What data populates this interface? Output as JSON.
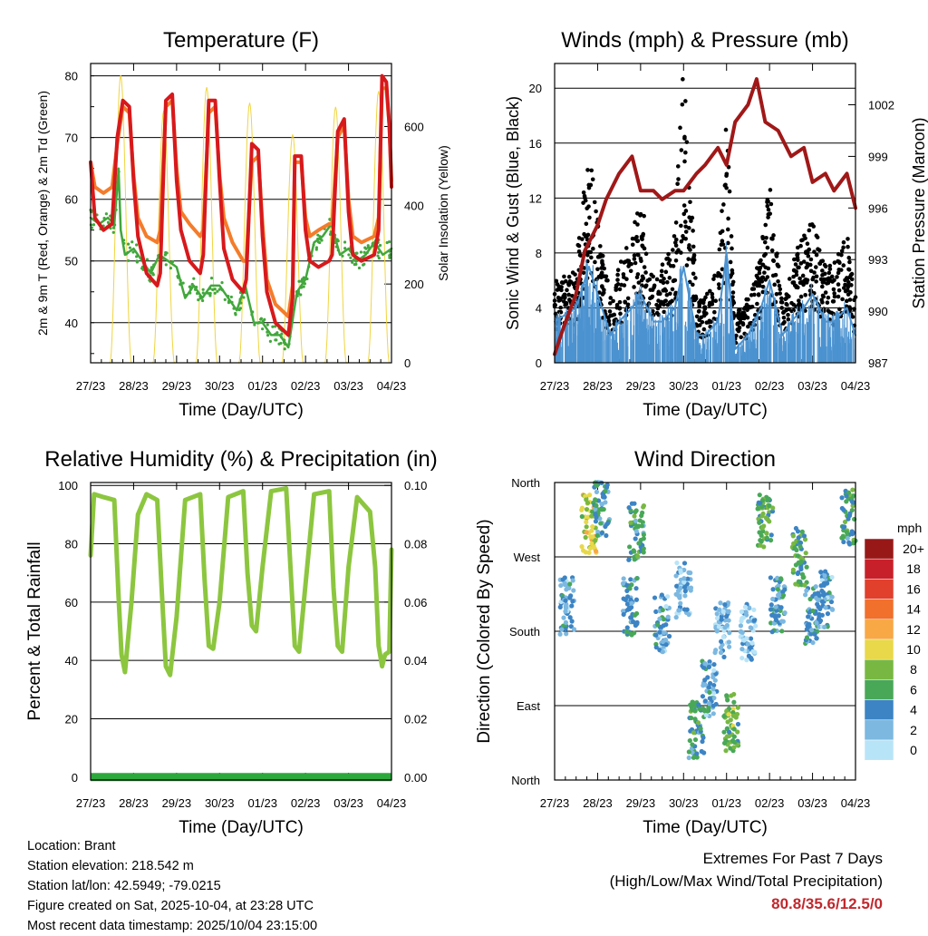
{
  "colors": {
    "temp2m": "#d7191c",
    "temp9m": "#f47c2a",
    "dewpoint": "#41a73c",
    "solar": "#f0d540",
    "gust": "#000000",
    "wind": "#4b92d0",
    "pressure": "#a01818",
    "rh": "#8cc63f",
    "precip": "#2ca83c",
    "extremes": "#c0282d"
  },
  "time_ticks": [
    "27/23",
    "28/23",
    "29/23",
    "30/23",
    "01/23",
    "02/23",
    "03/23",
    "04/23"
  ],
  "chart_data": [
    {
      "id": "temperature",
      "type": "line",
      "title": "Temperature (F)",
      "xlabel": "Time (Day/UTC)",
      "ylabel": "2m & 9m T (Red, Orange) & 2m Td (Green)",
      "y2label": "Solar Insolation (Yellow)",
      "ylim": [
        33.5,
        82
      ],
      "yticks": [
        40,
        50,
        60,
        70,
        80
      ],
      "y2lim": [
        0,
        760
      ],
      "y2ticks": [
        0,
        200,
        400,
        600
      ],
      "xlim_days": [
        0,
        7
      ],
      "series": [
        {
          "name": "2m T",
          "color": "temp2m",
          "x": [
            0,
            0.1,
            0.3,
            0.5,
            0.62,
            0.75,
            0.9,
            1.0,
            1.1,
            1.3,
            1.55,
            1.62,
            1.75,
            1.9,
            2.0,
            2.1,
            2.3,
            2.55,
            2.62,
            2.75,
            2.9,
            3.0,
            3.1,
            3.3,
            3.55,
            3.62,
            3.75,
            3.9,
            4.0,
            4.1,
            4.3,
            4.6,
            4.7,
            4.75,
            4.9,
            5.0,
            5.1,
            5.3,
            5.55,
            5.62,
            5.75,
            5.9,
            6.0,
            6.1,
            6.3,
            6.6,
            6.7,
            6.78,
            6.88,
            6.95,
            7.0
          ],
          "y": [
            66,
            57,
            55,
            56,
            70,
            76,
            75,
            63,
            54,
            48,
            46,
            48,
            76,
            77,
            63,
            55,
            50,
            48,
            51,
            76,
            76,
            63,
            52,
            47,
            45,
            47,
            69,
            68,
            54,
            45,
            40,
            38,
            44,
            67,
            67,
            55,
            50,
            49,
            50,
            51,
            71,
            73,
            58,
            51,
            50,
            51,
            55,
            80,
            79,
            72,
            62
          ]
        },
        {
          "name": "9m T",
          "color": "temp9m",
          "x": [
            0,
            0.1,
            0.3,
            0.5,
            0.62,
            0.75,
            0.9,
            1.0,
            1.1,
            1.3,
            1.55,
            1.62,
            1.75,
            1.9,
            2.0,
            2.1,
            2.3,
            2.55,
            2.62,
            2.75,
            2.9,
            3.0,
            3.1,
            3.3,
            3.55,
            3.62,
            3.75,
            3.9,
            4.0,
            4.1,
            4.3,
            4.6,
            4.7,
            4.75,
            4.9,
            5.0,
            5.1,
            5.3,
            5.55,
            5.62,
            5.75,
            5.9,
            6.0,
            6.1,
            6.3,
            6.6,
            6.7,
            6.78,
            6.88,
            6.95,
            7.0
          ],
          "y": [
            66,
            62,
            61,
            62,
            69,
            75,
            74,
            64,
            57,
            54,
            53,
            55,
            75,
            76,
            65,
            58,
            56,
            54,
            55,
            74,
            75,
            64,
            57,
            53,
            50,
            50,
            66,
            67,
            56,
            47,
            43,
            41,
            46,
            66,
            66,
            57,
            54,
            55,
            56,
            56,
            70,
            72,
            60,
            54,
            53,
            54,
            57,
            78,
            78,
            72,
            63
          ]
        },
        {
          "name": "2m Td",
          "color": "dewpoint",
          "x": [
            0,
            0.2,
            0.4,
            0.55,
            0.62,
            0.65,
            0.7,
            0.8,
            1.0,
            1.2,
            1.4,
            1.6,
            1.8,
            2.0,
            2.2,
            2.4,
            2.6,
            2.8,
            3.0,
            3.2,
            3.4,
            3.6,
            3.8,
            4.0,
            4.2,
            4.4,
            4.6,
            4.8,
            5.0,
            5.2,
            5.4,
            5.6,
            5.8,
            6.0,
            6.2,
            6.4,
            6.6,
            6.8,
            7.0
          ],
          "y": [
            57,
            56,
            57,
            56,
            62,
            65,
            55,
            51,
            52,
            50,
            48,
            51,
            50,
            49,
            44,
            46,
            44,
            46,
            46,
            44,
            42,
            46,
            40,
            40,
            38,
            38,
            36,
            45,
            47,
            53,
            54,
            56,
            51,
            52,
            50,
            51,
            53,
            51,
            52
          ]
        },
        {
          "name": "Solar",
          "color": "solar",
          "axis": "y2",
          "peak": [
            730,
            640,
            700,
            660,
            580,
            650,
            690
          ],
          "days": 7
        }
      ]
    },
    {
      "id": "winds",
      "type": "scatter",
      "title": "Winds (mph) & Pressure (mb)",
      "xlabel": "Time (Day/UTC)",
      "ylabel": "Sonic Wind & Gust (Blue, Black)",
      "y2label": "Station Pressure (Maroon)",
      "ylim": [
        0,
        21.8
      ],
      "yticks": [
        0,
        4,
        8,
        12,
        16,
        20
      ],
      "y2lim": [
        987,
        1004.4
      ],
      "y2ticks": [
        987,
        990,
        993,
        996,
        999,
        1002
      ],
      "xlim_days": [
        0,
        7
      ],
      "series": [
        {
          "name": "Sonic Wind",
          "color": "wind",
          "x": [
            0,
            0.5,
            0.8,
            1.0,
            1.3,
            1.5,
            1.8,
            2.0,
            2.3,
            2.5,
            2.8,
            3.0,
            3.3,
            3.5,
            3.8,
            4.0,
            4.2,
            4.5,
            4.8,
            5.0,
            5.3,
            5.5,
            5.8,
            6.0,
            6.3,
            6.5,
            6.8,
            7.0
          ],
          "y": [
            3,
            4,
            7,
            5,
            2,
            3,
            4,
            5,
            3,
            3,
            4,
            7,
            2,
            2,
            3,
            8,
            1,
            2,
            4,
            6,
            2,
            3,
            4,
            5,
            3,
            3,
            4,
            2
          ]
        },
        {
          "name": "Gust",
          "color": "gust",
          "x": [
            0,
            0.5,
            0.8,
            1.0,
            1.3,
            1.5,
            1.8,
            2.0,
            2.3,
            2.5,
            2.8,
            3.0,
            3.3,
            3.5,
            3.8,
            4.0,
            4.2,
            4.5,
            4.8,
            5.0,
            5.3,
            5.5,
            5.8,
            6.0,
            6.3,
            6.5,
            6.8,
            7.0
          ],
          "y": [
            5,
            6,
            14,
            9,
            4,
            6,
            8,
            10,
            6,
            6,
            8,
            19,
            4,
            4,
            6,
            15,
            3,
            4,
            7,
            11,
            4,
            6,
            8,
            9,
            6,
            6,
            8,
            4
          ]
        },
        {
          "name": "Pressure",
          "color": "pressure",
          "axis": "y2",
          "x": [
            0,
            0.2,
            0.5,
            0.7,
            1.0,
            1.2,
            1.5,
            1.8,
            2.0,
            2.3,
            2.5,
            2.8,
            3.0,
            3.3,
            3.5,
            3.8,
            4.0,
            4.2,
            4.5,
            4.7,
            4.9,
            5.2,
            5.5,
            5.8,
            6.0,
            6.3,
            6.5,
            6.8,
            7.0
          ],
          "y": [
            987.5,
            989,
            991,
            993.5,
            995,
            996.5,
            998,
            999,
            997,
            997,
            996.5,
            997,
            997,
            998,
            998.5,
            999.5,
            998.5,
            1001,
            1002,
            1003.5,
            1001,
            1000.5,
            999,
            999.5,
            997.5,
            998,
            997,
            998,
            996
          ]
        }
      ]
    },
    {
      "id": "humidity",
      "type": "line",
      "title": "Relative Humidity (%) & Precipitation (in)",
      "xlabel": "Time (Day/UTC)",
      "ylabel": "Percent & Total Rainfall",
      "ylim": [
        -1,
        101
      ],
      "yticks": [
        0,
        20,
        40,
        60,
        80,
        100
      ],
      "y2lim": [
        -0.001,
        0.101
      ],
      "y2ticks": [
        "0.00",
        "0.02",
        "0.04",
        "0.06",
        "0.08",
        "0.10"
      ],
      "xlim_days": [
        0,
        7
      ],
      "series": [
        {
          "name": "RH",
          "color": "rh",
          "x": [
            0,
            0.08,
            0.3,
            0.55,
            0.65,
            0.72,
            0.8,
            0.95,
            1.1,
            1.3,
            1.55,
            1.65,
            1.75,
            1.85,
            2.0,
            2.2,
            2.55,
            2.65,
            2.75,
            2.85,
            3.0,
            3.2,
            3.55,
            3.65,
            3.75,
            3.85,
            4.0,
            4.2,
            4.55,
            4.65,
            4.75,
            4.85,
            5.0,
            5.2,
            5.55,
            5.65,
            5.75,
            5.85,
            6.0,
            6.2,
            6.5,
            6.62,
            6.7,
            6.78,
            6.85,
            6.95,
            7.0
          ],
          "y": [
            76,
            97,
            96,
            95,
            62,
            42,
            36,
            60,
            90,
            97,
            95,
            65,
            38,
            35,
            55,
            95,
            97,
            68,
            45,
            44,
            60,
            96,
            98,
            70,
            52,
            50,
            72,
            98,
            99,
            72,
            45,
            43,
            66,
            97,
            98,
            65,
            45,
            43,
            72,
            96,
            91,
            72,
            45,
            38,
            42,
            43,
            78
          ]
        },
        {
          "name": "Total Precip",
          "color": "precip",
          "axis": "y2",
          "x": [
            0,
            7
          ],
          "y": [
            0,
            0
          ]
        }
      ]
    },
    {
      "id": "direction",
      "type": "scatter",
      "title": "Wind Direction",
      "xlabel": "Time (Day/UTC)",
      "ylabel": "Direction (Colored By Speed)",
      "yticks": [
        "North",
        "East",
        "South",
        "West",
        "North"
      ],
      "ylim": [
        0,
        360
      ],
      "xlim_days": [
        0,
        7
      ],
      "clusters": [
        {
          "x": 0.3,
          "dir": 210,
          "spd": 3
        },
        {
          "x": 0.8,
          "dir": 310,
          "spd": 9
        },
        {
          "x": 1.1,
          "dir": 330,
          "spd": 4
        },
        {
          "x": 1.75,
          "dir": 210,
          "spd": 4
        },
        {
          "x": 1.9,
          "dir": 300,
          "spd": 5
        },
        {
          "x": 2.5,
          "dir": 190,
          "spd": 3
        },
        {
          "x": 3.0,
          "dir": 230,
          "spd": 2
        },
        {
          "x": 3.3,
          "dir": 60,
          "spd": 5
        },
        {
          "x": 3.6,
          "dir": 110,
          "spd": 3
        },
        {
          "x": 3.9,
          "dir": 180,
          "spd": 2
        },
        {
          "x": 4.1,
          "dir": 70,
          "spd": 7
        },
        {
          "x": 4.5,
          "dir": 180,
          "spd": 2
        },
        {
          "x": 4.9,
          "dir": 310,
          "spd": 6
        },
        {
          "x": 5.2,
          "dir": 210,
          "spd": 4
        },
        {
          "x": 5.7,
          "dir": 270,
          "spd": 6
        },
        {
          "x": 6.0,
          "dir": 200,
          "spd": 4
        },
        {
          "x": 6.3,
          "dir": 220,
          "spd": 3
        },
        {
          "x": 6.85,
          "dir": 320,
          "spd": 5
        }
      ],
      "colorbar": {
        "title": "mph",
        "labels": [
          "20+",
          "18",
          "16",
          "14",
          "12",
          "10",
          "8",
          "6",
          "4",
          "2",
          "0"
        ],
        "colors": [
          "#981818",
          "#c8202a",
          "#e0402c",
          "#f0702c",
          "#f8a845",
          "#e8d84a",
          "#78b842",
          "#48a858",
          "#3c84c4",
          "#7cb8e0",
          "#b8e4f8"
        ]
      }
    }
  ],
  "footer": {
    "location": "Location: Brant",
    "elevation": "Station elevation: 218.542 m",
    "latlon": "Station lat/lon: 42.5949; -79.0215",
    "created": "Figure created on Sat, 2025-10-04, at 23:28 UTC",
    "recent": "Most recent data timestamp: 2025/10/04 23:15:00"
  },
  "extremes": {
    "title": "Extremes For Past 7 Days",
    "subtitle": "(High/Low/Max Wind/Total Precipitation)",
    "value": "80.8/35.6/12.5/0"
  }
}
